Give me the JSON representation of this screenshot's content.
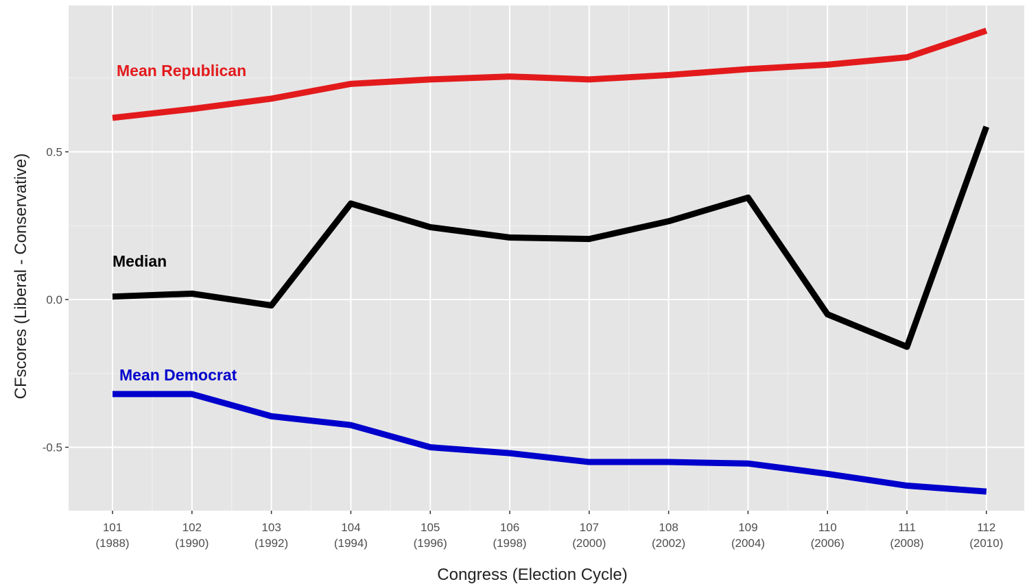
{
  "chart_data": {
    "type": "line",
    "xlabel": "Congress (Election Cycle)",
    "ylabel": "CFscores (Liberal - Conservative)",
    "categories": [
      "101",
      "102",
      "103",
      "104",
      "105",
      "106",
      "107",
      "108",
      "109",
      "110",
      "111",
      "112"
    ],
    "category_years": [
      "(1988)",
      "(1990)",
      "(1992)",
      "(1994)",
      "(1996)",
      "(1998)",
      "(2000)",
      "(2002)",
      "(2004)",
      "(2006)",
      "(2008)",
      "(2010)"
    ],
    "ylim": [
      -0.72,
      1.0
    ],
    "yticks": [
      -0.5,
      0.0,
      0.5
    ],
    "ytick_labels": [
      "-0.5",
      "0.0",
      "0.5"
    ],
    "grid": true,
    "background": "#e5e5e5",
    "series": [
      {
        "name": "Mean Republican",
        "color": "#e31a1c",
        "values": [
          0.615,
          0.645,
          0.68,
          0.73,
          0.745,
          0.755,
          0.745,
          0.76,
          0.78,
          0.795,
          0.82,
          0.91
        ]
      },
      {
        "name": "Median",
        "color": "#000000",
        "values": [
          0.01,
          0.02,
          -0.02,
          0.325,
          0.245,
          0.21,
          0.205,
          0.265,
          0.345,
          -0.05,
          -0.16,
          0.585
        ]
      },
      {
        "name": "Mean Democrat",
        "color": "#0000cc",
        "values": [
          -0.32,
          -0.32,
          -0.395,
          -0.425,
          -0.5,
          -0.52,
          -0.55,
          -0.55,
          -0.555,
          -0.59,
          -0.63,
          -0.65
        ]
      }
    ]
  }
}
